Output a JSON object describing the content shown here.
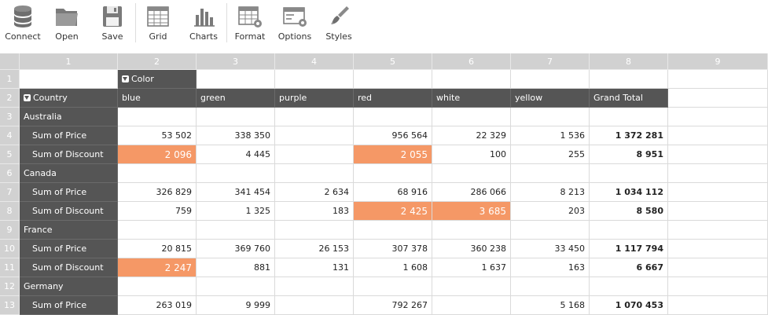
{
  "toolbar": [
    {
      "key": "connect",
      "label": "Connect",
      "icon": "database-icon"
    },
    {
      "key": "open",
      "label": "Open",
      "icon": "folder-icon"
    },
    {
      "key": "save",
      "label": "Save",
      "icon": "floppy-disk-icon"
    },
    {
      "key": "grid",
      "label": "Grid",
      "icon": "grid-icon"
    },
    {
      "key": "charts",
      "label": "Charts",
      "icon": "bar-chart-icon"
    },
    {
      "key": "format",
      "label": "Format",
      "icon": "format-table-icon"
    },
    {
      "key": "options",
      "label": "Options",
      "icon": "options-window-icon"
    },
    {
      "key": "styles",
      "label": "Styles",
      "icon": "paint-brush-icon"
    }
  ],
  "column_headers": [
    "1",
    "2",
    "3",
    "4",
    "5",
    "6",
    "7",
    "8",
    "9"
  ],
  "row_headers": [
    "1",
    "2",
    "3",
    "4",
    "5",
    "6",
    "7",
    "8",
    "9",
    "10",
    "11",
    "12",
    "13"
  ],
  "pivot": {
    "color_filter_label": "Color",
    "country_filter_label": "Country",
    "columns": [
      "blue",
      "green",
      "purple",
      "red",
      "white",
      "yellow",
      "Grand Total"
    ],
    "rows": [
      {
        "type": "group",
        "label": "Australia"
      },
      {
        "type": "measure",
        "label": "Sum of Price",
        "values": [
          "53 502",
          "338 350",
          "",
          "956 564",
          "22 329",
          "1 536",
          "1 372 281"
        ]
      },
      {
        "type": "measure",
        "label": "Sum of Discount",
        "values": [
          "2 096",
          "4 445",
          "",
          "2 055",
          "100",
          "255",
          "8 951"
        ],
        "highlight": [
          0,
          3
        ]
      },
      {
        "type": "group",
        "label": "Canada"
      },
      {
        "type": "measure",
        "label": "Sum of Price",
        "values": [
          "326 829",
          "341 454",
          "2 634",
          "68 916",
          "286 066",
          "8 213",
          "1 034 112"
        ]
      },
      {
        "type": "measure",
        "label": "Sum of Discount",
        "values": [
          "759",
          "1 325",
          "183",
          "2 425",
          "3 685",
          "203",
          "8 580"
        ],
        "highlight": [
          3,
          4
        ]
      },
      {
        "type": "group",
        "label": "France"
      },
      {
        "type": "measure",
        "label": "Sum of Price",
        "values": [
          "20 815",
          "369 760",
          "26 153",
          "307 378",
          "360 238",
          "33 450",
          "1 117 794"
        ]
      },
      {
        "type": "measure",
        "label": "Sum of Discount",
        "values": [
          "2 247",
          "881",
          "131",
          "1 608",
          "1 637",
          "163",
          "6 667"
        ],
        "highlight": [
          0
        ]
      },
      {
        "type": "group",
        "label": "Germany"
      },
      {
        "type": "measure",
        "label": "Sum of Price",
        "values": [
          "263 019",
          "9 999",
          "",
          "792 267",
          "",
          "5 168",
          "1 070 453"
        ]
      }
    ]
  },
  "colors": {
    "dark": "#555555",
    "header": "#d1d1d1",
    "highlight": "#f59866"
  }
}
